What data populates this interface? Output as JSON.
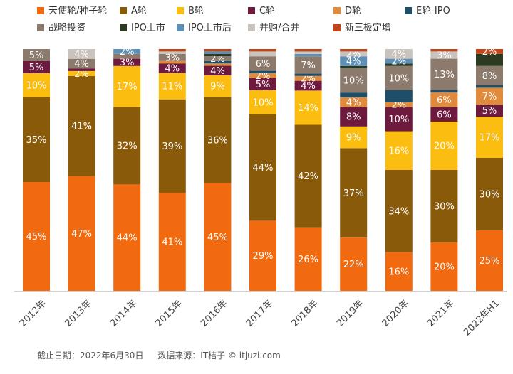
{
  "footer": {
    "cutoff": "截止日期：2022年6月30日",
    "source": "数据来源：IT桔子 © itjuzi.com"
  },
  "chart_data": {
    "type": "bar",
    "stacked": true,
    "normalized": true,
    "categories": [
      "2012年",
      "2013年",
      "2014年",
      "2015年",
      "2016年",
      "2017年",
      "2018年",
      "2019年",
      "2020年",
      "2021年",
      "2022年H1"
    ],
    "legend_position": "top",
    "grid": false,
    "ylim": [
      0,
      100
    ],
    "series": [
      {
        "name": "天使轮/种子轮",
        "color": "#f26a10",
        "values": [
          45,
          47,
          44,
          41,
          45,
          29,
          26,
          22,
          16,
          20,
          25
        ],
        "labels": [
          "45%",
          "47%",
          "44%",
          "41%",
          "45%",
          "29%",
          "26%",
          "22%",
          "16%",
          "20%",
          "25%"
        ]
      },
      {
        "name": "A轮",
        "color": "#8a5a0b",
        "values": [
          35,
          41,
          32,
          39,
          36,
          44,
          42,
          37,
          34,
          30,
          30
        ],
        "labels": [
          "35%",
          "41%",
          "32%",
          "39%",
          "36%",
          "44%",
          "42%",
          "37%",
          "34%",
          "30%",
          "30%"
        ]
      },
      {
        "name": "B轮",
        "color": "#fbbd10",
        "values": [
          10,
          2,
          17,
          11,
          9,
          10,
          14,
          9,
          16,
          20,
          17
        ],
        "labels": [
          "10%",
          "2%",
          "17%",
          "11%",
          "9%",
          "10%",
          "14%",
          "9%",
          "16%",
          "20%",
          "17%"
        ]
      },
      {
        "name": "C轮",
        "color": "#6e1a3f",
        "values": [
          5,
          1,
          3,
          4,
          4,
          5,
          4,
          8,
          10,
          6,
          5
        ],
        "labels": [
          "5%",
          "",
          "3%",
          "4%",
          "4%",
          "5%",
          "4%",
          "8%",
          "10%",
          "6%",
          "5%"
        ]
      },
      {
        "name": "D轮",
        "color": "#e08a3c",
        "values": [
          0,
          0,
          0,
          1,
          1,
          2,
          2,
          4,
          2,
          6,
          7
        ],
        "labels": [
          "",
          "",
          "",
          "",
          "",
          "2%",
          "2%",
          "4%",
          "2%",
          "6%",
          "7%"
        ]
      },
      {
        "name": "E轮-IPO",
        "color": "#1f4e6b",
        "values": [
          0,
          0,
          0,
          0,
          1,
          1,
          1,
          2,
          5,
          1,
          1
        ],
        "labels": [
          "",
          "",
          "",
          "",
          "",
          "",
          "",
          "",
          "",
          "",
          ""
        ]
      },
      {
        "name": "战略投资",
        "color": "#8c7b6d",
        "values": [
          5,
          4,
          2,
          3,
          2,
          6,
          7,
          10,
          10,
          13,
          8
        ],
        "labels": [
          "5%",
          "4%",
          "",
          "3%",
          "2%",
          "6%",
          "7%",
          "10%",
          "10%",
          "13%",
          "8%"
        ]
      },
      {
        "name": "IPO上市",
        "color": "#2d3a22",
        "values": [
          0,
          0,
          0,
          0,
          1,
          0,
          0,
          1,
          1,
          0,
          5
        ],
        "labels": [
          "",
          "",
          "",
          "",
          "",
          "",
          "",
          "",
          "",
          "",
          ""
        ]
      },
      {
        "name": "IPO上市后",
        "color": "#5e8fb5",
        "values": [
          0,
          0,
          2,
          0,
          1,
          0,
          1,
          4,
          2,
          0,
          0
        ],
        "labels": [
          "",
          "",
          "2%",
          "",
          "",
          "",
          "",
          "4%",
          "2%",
          "",
          ""
        ]
      },
      {
        "name": "并购/合并",
        "color": "#c9c3bd",
        "values": [
          0,
          4,
          0,
          1,
          0,
          2,
          1,
          2,
          4,
          3,
          0
        ],
        "labels": [
          "",
          "4%",
          "",
          "",
          "",
          "",
          "",
          "2%",
          "4%",
          "3%",
          ""
        ]
      },
      {
        "name": "新三板定增",
        "color": "#c0451b",
        "values": [
          0,
          0,
          0,
          1,
          1,
          1,
          1,
          1,
          0,
          1,
          2
        ],
        "labels": [
          "",
          "",
          "",
          "",
          "",
          "",
          "",
          "",
          "",
          "",
          "2%"
        ]
      }
    ]
  }
}
